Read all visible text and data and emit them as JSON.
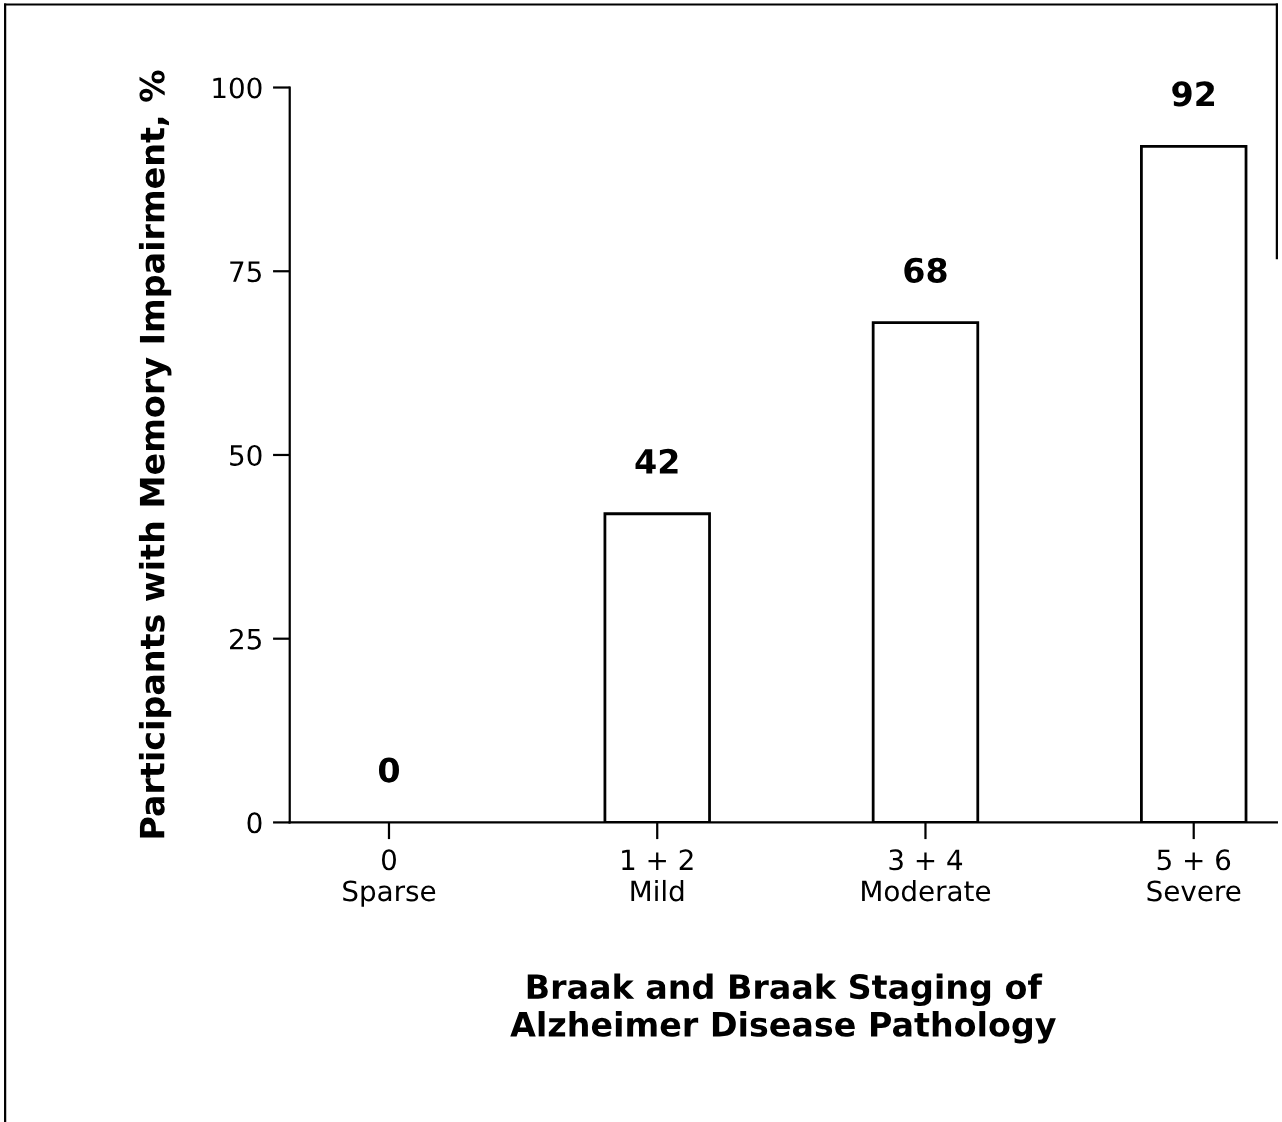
{
  "chart_data": {
    "type": "bar",
    "xlabel": "Braak and Braak Staging of\nAlzheimer Disease Pathology",
    "ylabel": "Participants with Memory Impairment, %",
    "categories": [
      "0\nSparse",
      "1 + 2\nMild",
      "3 + 4\nModerate",
      "5 + 6\nSevere"
    ],
    "values": [
      0,
      42,
      68,
      92
    ],
    "color": "#ffffff",
    "ylim": [
      0,
      100
    ],
    "yticks": [
      0,
      25,
      50,
      75,
      100
    ],
    "data_labels": true,
    "grid": false,
    "legend": false
  }
}
